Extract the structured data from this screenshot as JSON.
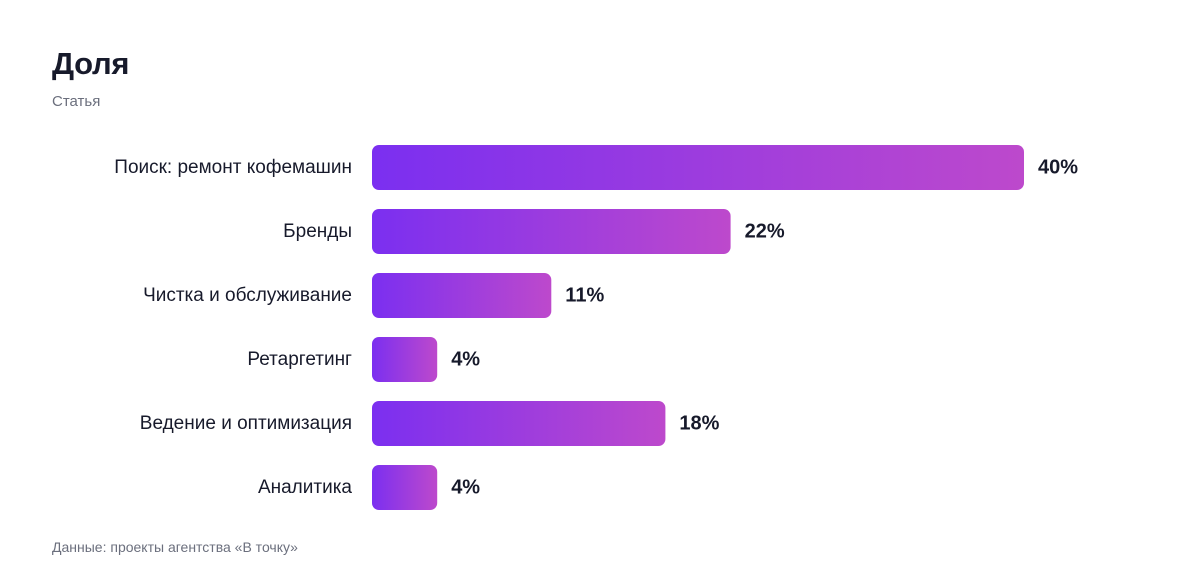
{
  "chart_data": {
    "type": "bar",
    "orientation": "horizontal",
    "title": "Доля",
    "subtitle": "Статья",
    "categories": [
      "Поиск: ремонт кофемашин",
      "Бренды",
      "Чистка и обслуживание",
      "Ретаргетинг",
      "Ведение и оптимизация",
      "Аналитика"
    ],
    "values": [
      40,
      22,
      11,
      4,
      18,
      4
    ],
    "value_labels": [
      "40%",
      "22%",
      "11%",
      "4%",
      "18%",
      "4%"
    ],
    "xlabel": "",
    "ylabel": "",
    "xlim": [
      0,
      40
    ],
    "grid": false,
    "legend": "none",
    "note": "Данные: проекты агентства «В точку»",
    "colors": {
      "bar_gradient_start": "#7b2ff0",
      "bar_gradient_end": "#bd49cc",
      "text": "#171a2b",
      "muted_text": "#6b6f7d"
    }
  }
}
